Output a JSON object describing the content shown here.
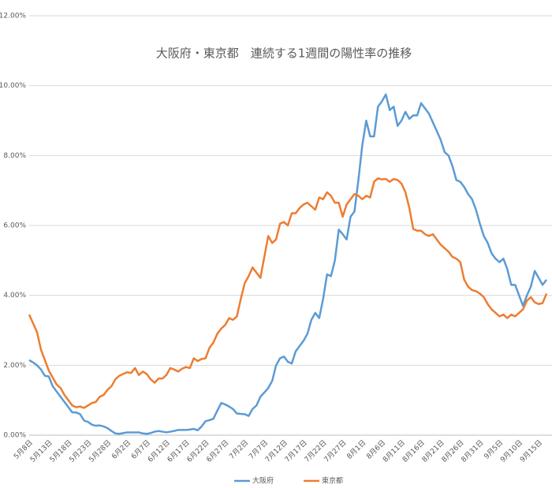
{
  "chart_data": {
    "type": "line",
    "title": "大阪府・東京都　連続する1週間の陽性率の推移",
    "categories": [
      "5月8日",
      null,
      null,
      null,
      null,
      "5月13日",
      null,
      null,
      null,
      null,
      "5月18日",
      null,
      null,
      null,
      null,
      "5月23日",
      null,
      null,
      null,
      null,
      "5月28日",
      null,
      null,
      null,
      null,
      "6月2日",
      null,
      null,
      null,
      null,
      "6月7日",
      null,
      null,
      null,
      null,
      "6月12日",
      null,
      null,
      null,
      null,
      "6月17日",
      null,
      null,
      null,
      null,
      "6月22日",
      null,
      null,
      null,
      null,
      "6月27日",
      null,
      null,
      null,
      null,
      "7月2日",
      null,
      null,
      null,
      null,
      "7月7日",
      null,
      null,
      null,
      null,
      "7月12日",
      null,
      null,
      null,
      null,
      "7月17日",
      null,
      null,
      null,
      null,
      "7月22日",
      null,
      null,
      null,
      null,
      "7月27日",
      null,
      null,
      null,
      null,
      "8月1日",
      null,
      null,
      null,
      null,
      "8月6日",
      null,
      null,
      null,
      null,
      "8月11日",
      null,
      null,
      null,
      null,
      "8月16日",
      null,
      null,
      null,
      null,
      "8月21日",
      null,
      null,
      null,
      null,
      "8月26日",
      null,
      null,
      null,
      null,
      "8月31日",
      null,
      null,
      null,
      null,
      "9月5日",
      null,
      null,
      null,
      null,
      "9月10日",
      null,
      null,
      null,
      null,
      "9月15日",
      null,
      null
    ],
    "series": [
      {
        "name": "大阪府",
        "color": "#5b9bd5",
        "values": [
          2.15,
          2.08,
          2.0,
          1.88,
          1.7,
          1.68,
          1.4,
          1.25,
          1.1,
          0.95,
          0.8,
          0.65,
          0.65,
          0.6,
          0.42,
          0.38,
          0.3,
          0.27,
          0.28,
          0.25,
          0.2,
          0.12,
          0.05,
          0.04,
          0.06,
          0.08,
          0.08,
          0.08,
          0.08,
          0.05,
          0.04,
          0.06,
          0.1,
          0.12,
          0.1,
          0.08,
          0.1,
          0.12,
          0.15,
          0.15,
          0.15,
          0.16,
          0.18,
          0.14,
          0.25,
          0.4,
          0.43,
          0.47,
          0.7,
          0.92,
          0.88,
          0.82,
          0.75,
          0.62,
          0.61,
          0.6,
          0.55,
          0.75,
          0.85,
          1.1,
          1.22,
          1.35,
          1.55,
          2.0,
          2.2,
          2.25,
          2.1,
          2.05,
          2.4,
          2.55,
          2.7,
          2.9,
          3.3,
          3.5,
          3.35,
          3.9,
          4.6,
          4.55,
          5.0,
          5.88,
          5.75,
          5.6,
          6.25,
          6.4,
          7.3,
          8.3,
          9.0,
          8.55,
          8.55,
          9.4,
          9.55,
          9.75,
          9.3,
          9.4,
          8.85,
          9.0,
          9.25,
          9.05,
          9.15,
          9.15,
          9.5,
          9.35,
          9.2,
          8.95,
          8.7,
          8.45,
          8.1,
          8.0,
          7.7,
          7.3,
          7.25,
          7.1,
          6.9,
          6.75,
          6.45,
          6.05,
          5.7,
          5.5,
          5.2,
          5.05,
          4.95,
          5.05,
          4.75,
          4.3,
          4.3,
          4.0,
          3.7,
          4.0,
          4.25,
          4.7,
          4.5,
          4.3,
          4.45
        ]
      },
      {
        "name": "東京都",
        "color": "#ed7d31",
        "values": [
          3.45,
          3.2,
          2.95,
          2.45,
          2.15,
          1.85,
          1.65,
          1.45,
          1.35,
          1.15,
          1.0,
          0.85,
          0.8,
          0.82,
          0.78,
          0.85,
          0.92,
          0.95,
          1.1,
          1.15,
          1.3,
          1.4,
          1.6,
          1.7,
          1.75,
          1.8,
          1.78,
          1.92,
          1.72,
          1.82,
          1.75,
          1.6,
          1.5,
          1.62,
          1.62,
          1.72,
          1.92,
          1.88,
          1.82,
          1.9,
          1.95,
          1.92,
          2.2,
          2.12,
          2.18,
          2.2,
          2.5,
          2.65,
          2.9,
          3.05,
          3.15,
          3.35,
          3.3,
          3.4,
          3.9,
          4.35,
          4.55,
          4.8,
          4.65,
          4.5,
          5.1,
          5.7,
          5.5,
          5.6,
          6.05,
          6.1,
          6.0,
          6.35,
          6.35,
          6.5,
          6.6,
          6.65,
          6.55,
          6.45,
          6.8,
          6.75,
          6.95,
          6.85,
          6.65,
          6.65,
          6.25,
          6.6,
          6.75,
          6.9,
          6.85,
          6.75,
          6.85,
          6.8,
          7.25,
          7.35,
          7.32,
          7.33,
          7.25,
          7.33,
          7.3,
          7.2,
          6.95,
          6.5,
          5.9,
          5.85,
          5.85,
          5.75,
          5.7,
          5.75,
          5.6,
          5.45,
          5.35,
          5.25,
          5.1,
          5.05,
          4.95,
          4.45,
          4.25,
          4.15,
          4.12,
          4.05,
          3.95,
          3.75,
          3.6,
          3.5,
          3.4,
          3.45,
          3.35,
          3.45,
          3.4,
          3.5,
          3.6,
          3.85,
          3.95,
          3.8,
          3.75,
          3.78,
          4.05
        ]
      }
    ],
    "ylim": [
      0,
      12
    ],
    "yticks": [
      {
        "value": 0,
        "label": "0.00%"
      },
      {
        "value": 2,
        "label": "2.00%"
      },
      {
        "value": 4,
        "label": "4.00%"
      },
      {
        "value": 6,
        "label": "6.00%"
      },
      {
        "value": 8,
        "label": "8.00%"
      },
      {
        "value": 10,
        "label": "10.00%"
      },
      {
        "value": 12,
        "label": "12.00%"
      }
    ],
    "grid": true,
    "legend": "bottom"
  }
}
